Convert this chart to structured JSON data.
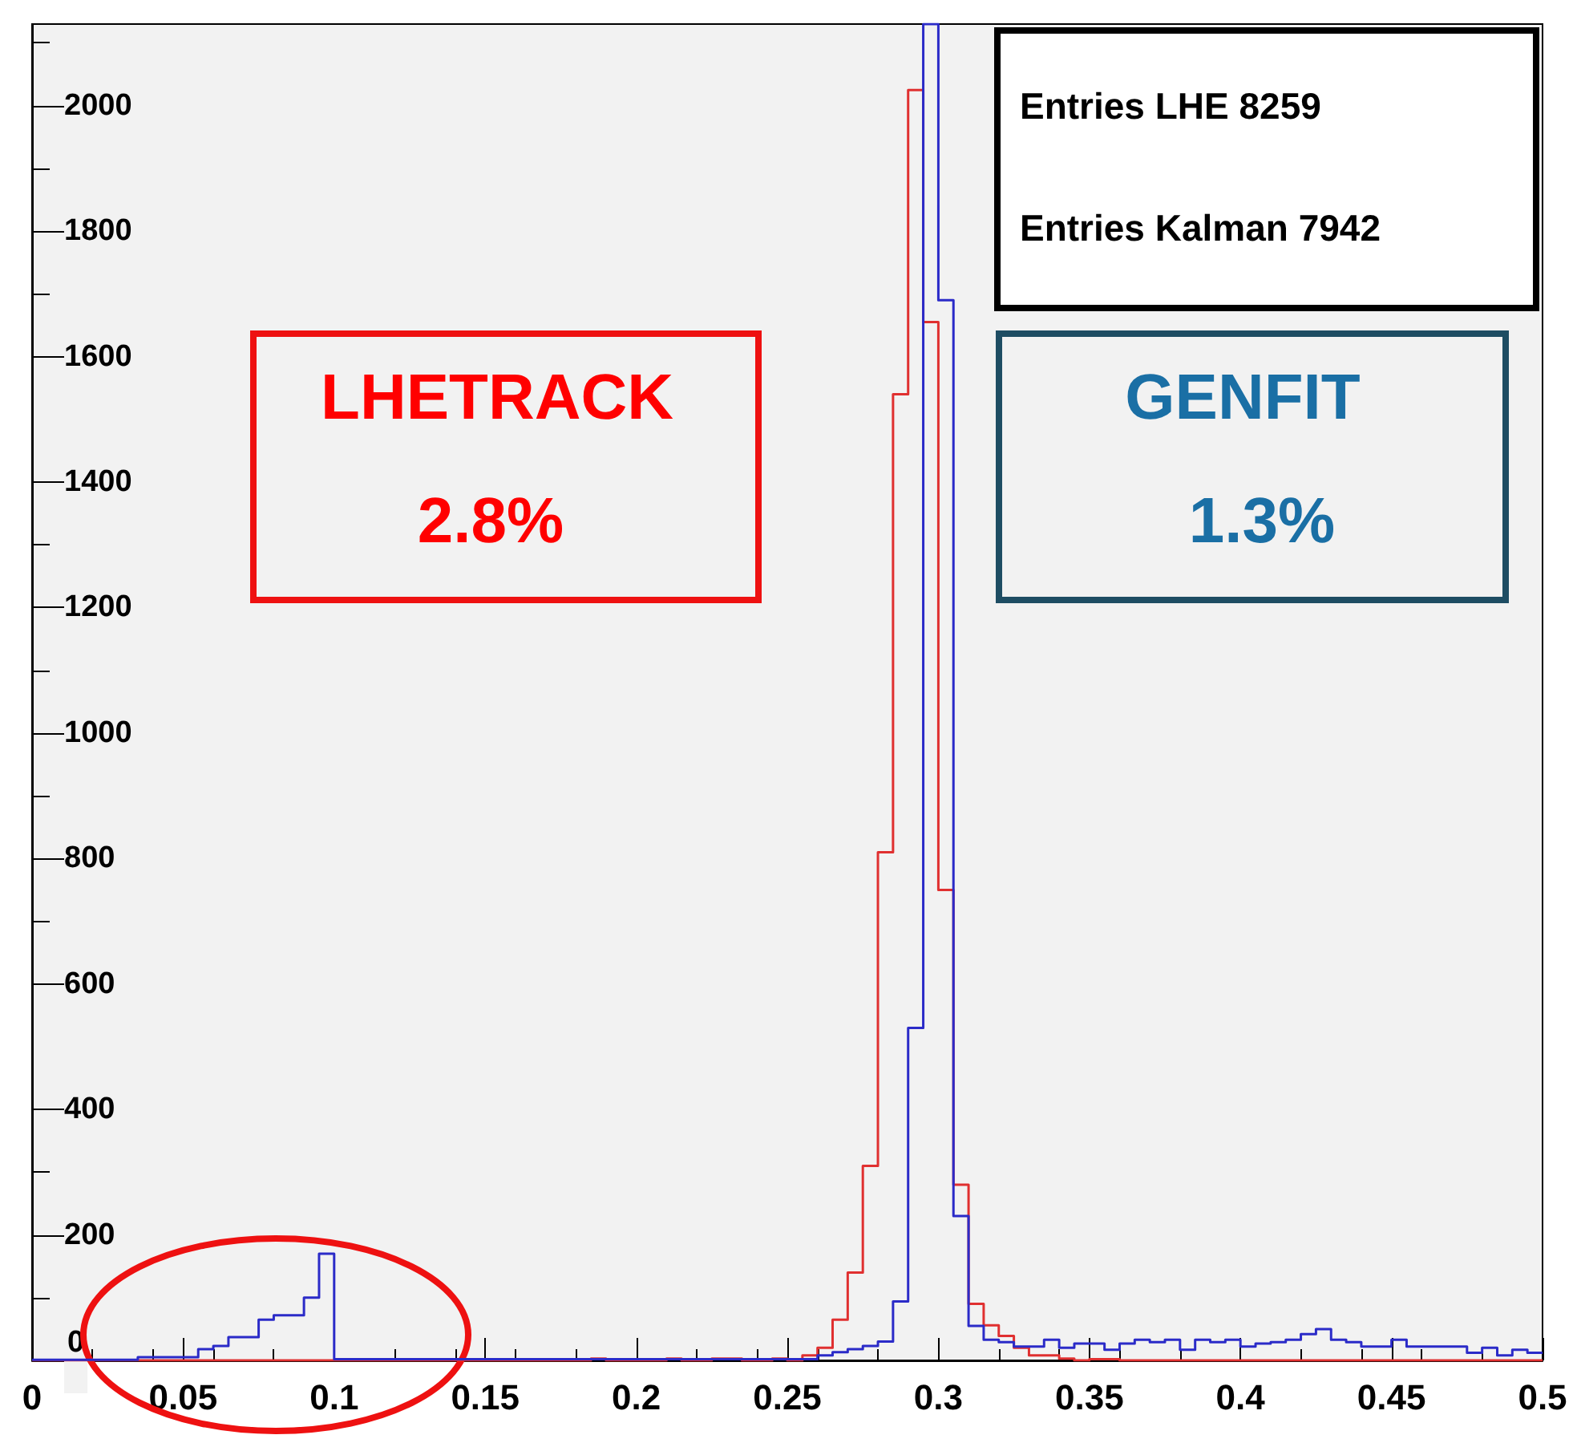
{
  "chart_data": {
    "type": "histogram",
    "bins": [
      0,
      0.005,
      0.01,
      0.015,
      0.02,
      0.025,
      0.03,
      0.035,
      0.04,
      0.045,
      0.05,
      0.055,
      0.06,
      0.065,
      0.07,
      0.075,
      0.08,
      0.085,
      0.09,
      0.095,
      0.1,
      0.105,
      0.11,
      0.115,
      0.12,
      0.125,
      0.13,
      0.135,
      0.14,
      0.145,
      0.15,
      0.155,
      0.16,
      0.165,
      0.17,
      0.175,
      0.18,
      0.185,
      0.19,
      0.195,
      0.2,
      0.205,
      0.21,
      0.215,
      0.22,
      0.225,
      0.23,
      0.235,
      0.24,
      0.245,
      0.25,
      0.255,
      0.26,
      0.265,
      0.27,
      0.275,
      0.28,
      0.285,
      0.29,
      0.295,
      0.3,
      0.305,
      0.31,
      0.315,
      0.32,
      0.325,
      0.33,
      0.335,
      0.34,
      0.345,
      0.35,
      0.355,
      0.36,
      0.365,
      0.37,
      0.375,
      0.38,
      0.385,
      0.39,
      0.395,
      0.4,
      0.405,
      0.41,
      0.415,
      0.42,
      0.425,
      0.43,
      0.435,
      0.44,
      0.445,
      0.45,
      0.455,
      0.46,
      0.465,
      0.47,
      0.475,
      0.48,
      0.485,
      0.49,
      0.495,
      0.5
    ],
    "series": [
      {
        "color": "#e03030",
        "values": [
          0,
          0,
          0,
          0,
          0,
          0,
          0,
          0,
          0,
          0,
          0,
          0,
          0,
          0,
          0,
          0,
          0,
          0,
          0,
          0,
          0,
          0,
          0,
          0,
          0,
          0,
          0,
          0,
          0,
          0,
          0,
          0,
          0,
          0,
          0,
          0,
          0,
          3,
          0,
          0,
          0,
          0,
          3,
          0,
          0,
          3,
          3,
          0,
          0,
          3,
          0,
          8,
          20,
          65,
          140,
          310,
          810,
          1540,
          2025,
          1655,
          750,
          280,
          90,
          56,
          39,
          20,
          8,
          8,
          3,
          0,
          2,
          2,
          0,
          0,
          0,
          0,
          0,
          0,
          0,
          0,
          0,
          0,
          0,
          0,
          0,
          0,
          0,
          0,
          0,
          0,
          0,
          0,
          0,
          0,
          0,
          0,
          0,
          0,
          0,
          0
        ]
      },
      {
        "color": "#2b2bc8",
        "values": [
          1,
          1,
          1,
          1,
          1,
          1,
          1,
          5,
          5,
          5,
          5,
          18,
          23,
          37,
          37,
          65,
          72,
          72,
          100,
          170,
          2,
          2,
          2,
          2,
          2,
          2,
          2,
          2,
          2,
          2,
          2,
          2,
          2,
          2,
          2,
          2,
          2,
          2,
          2,
          2,
          2,
          2,
          2,
          2,
          2,
          2,
          2,
          2,
          2,
          2,
          2,
          2,
          8,
          13,
          18,
          23,
          30,
          94,
          530,
          2130,
          1690,
          230,
          55,
          33,
          29,
          22,
          22,
          33,
          20,
          27,
          27,
          17,
          27,
          33,
          29,
          33,
          17,
          33,
          29,
          33,
          22,
          27,
          29,
          33,
          42,
          50,
          33,
          29,
          22,
          22,
          33,
          22,
          22,
          22,
          22,
          12,
          20,
          8,
          17,
          12
        ]
      }
    ],
    "xlim": [
      0,
      0.5
    ],
    "xticks": [
      0,
      0.05,
      0.1,
      0.15,
      0.2,
      0.25,
      0.3,
      0.35,
      0.4,
      0.45,
      0.5
    ],
    "ylim": [
      0,
      2130
    ],
    "yticks": [
      0,
      200,
      400,
      600,
      800,
      1000,
      1200,
      1400,
      1600,
      1800,
      2000
    ],
    "annotations": [
      "Entries LHE 8259",
      "Entries Kalman 7942",
      "LHETRACK",
      "2.8%",
      "GENFIT",
      "1.3%"
    ]
  }
}
